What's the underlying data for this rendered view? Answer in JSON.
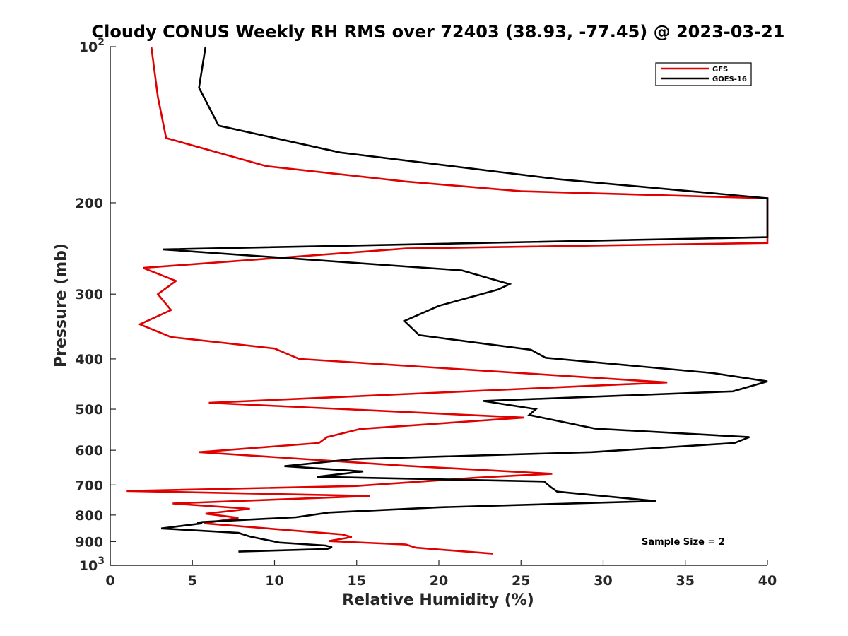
{
  "chart_data": {
    "type": "line",
    "title": "Cloudy CONUS Weekly RH RMS over 72403 (38.93, -77.45) @ 2023-03-21",
    "xlabel": "Relative Humidity (%)",
    "ylabel": "Pressure (mb)",
    "xlim": [
      0,
      40
    ],
    "ylim": [
      100,
      1000
    ],
    "y_scale": "log",
    "y_reversed": true,
    "grid": false,
    "xticks": [
      "0",
      "5",
      "10",
      "15",
      "20",
      "25",
      "30",
      "35",
      "40"
    ],
    "yticks": [
      {
        "value": 100,
        "label": "10",
        "sup": "2"
      },
      {
        "value": 200,
        "label": "200",
        "sup": ""
      },
      {
        "value": 300,
        "label": "300",
        "sup": ""
      },
      {
        "value": 400,
        "label": "400",
        "sup": ""
      },
      {
        "value": 500,
        "label": "500",
        "sup": ""
      },
      {
        "value": 600,
        "label": "600",
        "sup": ""
      },
      {
        "value": 700,
        "label": "700",
        "sup": ""
      },
      {
        "value": 800,
        "label": "800",
        "sup": ""
      },
      {
        "value": 900,
        "label": "900",
        "sup": ""
      },
      {
        "value": 1000,
        "label": "10",
        "sup": "3"
      }
    ],
    "legend_position": "top-right",
    "annotation": "Sample Size = 2",
    "series": [
      {
        "name": "GFS",
        "color": "#e00000",
        "points": [
          [
            2.5,
            100
          ],
          [
            2.9,
            125
          ],
          [
            3.4,
            150
          ],
          [
            9.5,
            170
          ],
          [
            18,
            182
          ],
          [
            25,
            190
          ],
          [
            40,
            196
          ],
          [
            40,
            239
          ],
          [
            18,
            245
          ],
          [
            2,
            267
          ],
          [
            4,
            283
          ],
          [
            2.9,
            300
          ],
          [
            3.7,
            322
          ],
          [
            1.8,
            343
          ],
          [
            3.7,
            363
          ],
          [
            10,
            382
          ],
          [
            11.5,
            400
          ],
          [
            33.9,
            444
          ],
          [
            6,
            486
          ],
          [
            25.2,
            519
          ],
          [
            15.2,
            546
          ],
          [
            13.2,
            566
          ],
          [
            12.7,
            581
          ],
          [
            5.4,
            605
          ],
          [
            18,
            643
          ],
          [
            26.9,
            666
          ],
          [
            22.5,
            677
          ],
          [
            15,
            703
          ],
          [
            1,
            719
          ],
          [
            15.8,
            735
          ],
          [
            3.8,
            760
          ],
          [
            8.5,
            778
          ],
          [
            5.8,
            795
          ],
          [
            7.8,
            810
          ],
          [
            5.7,
            830
          ],
          [
            14.1,
            872
          ],
          [
            14.7,
            882
          ],
          [
            13.3,
            898
          ],
          [
            18,
            912
          ],
          [
            18.6,
            925
          ],
          [
            23.3,
            950
          ]
        ]
      },
      {
        "name": "GOES-16",
        "color": "#000000",
        "points": [
          [
            5.8,
            100
          ],
          [
            5.4,
            120
          ],
          [
            6.6,
            142
          ],
          [
            14,
            160
          ],
          [
            27.2,
            180
          ],
          [
            40,
            196
          ],
          [
            40,
            233
          ],
          [
            3.2,
            246
          ],
          [
            21.4,
            270
          ],
          [
            24.3,
            287
          ],
          [
            23.6,
            294
          ],
          [
            20,
            316
          ],
          [
            17.9,
            338
          ],
          [
            18.8,
            360
          ],
          [
            25.6,
            384
          ],
          [
            26.5,
            398
          ],
          [
            36.7,
            426
          ],
          [
            40,
            442
          ],
          [
            37.9,
            462
          ],
          [
            22.7,
            482
          ],
          [
            25.9,
            500
          ],
          [
            25.5,
            513
          ],
          [
            29.5,
            545
          ],
          [
            38.9,
            566
          ],
          [
            38,
            581
          ],
          [
            29.3,
            605
          ],
          [
            14.8,
            624
          ],
          [
            10.6,
            644
          ],
          [
            15.4,
            659
          ],
          [
            12.6,
            675
          ],
          [
            26.4,
            689
          ],
          [
            26.8,
            706
          ],
          [
            27.2,
            721
          ],
          [
            33.2,
            752
          ],
          [
            20,
            773
          ],
          [
            13.3,
            791
          ],
          [
            11.3,
            808
          ],
          [
            5.6,
            825
          ],
          [
            5.3,
            828
          ],
          [
            5.6,
            830
          ],
          [
            3.1,
            849
          ],
          [
            7.8,
            866
          ],
          [
            8.5,
            880
          ],
          [
            10.3,
            904
          ],
          [
            13.1,
            916
          ],
          [
            13.5,
            923
          ],
          [
            13.2,
            930
          ],
          [
            7.8,
            941
          ]
        ]
      }
    ]
  }
}
